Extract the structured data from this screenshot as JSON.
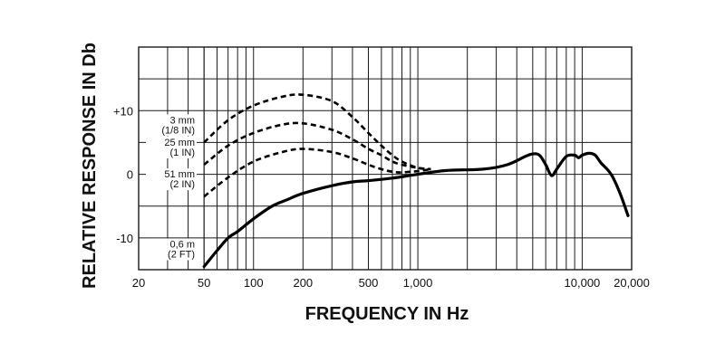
{
  "chart_data": {
    "type": "line",
    "xlabel": "FREQUENCY IN Hz",
    "ylabel": "RELATIVE RESPONSE IN Db",
    "x_scale": "log",
    "xlim": [
      20,
      20000
    ],
    "ylim": [
      -15,
      20
    ],
    "grid": true,
    "x_ticks": [
      {
        "value": 20,
        "label": "20"
      },
      {
        "value": 50,
        "label": "50"
      },
      {
        "value": 100,
        "label": "100"
      },
      {
        "value": 200,
        "label": "200"
      },
      {
        "value": 500,
        "label": "500"
      },
      {
        "value": 1000,
        "label": "1,000"
      },
      {
        "value": 10000,
        "label": "10,000"
      },
      {
        "value": 20000,
        "label": "20,000"
      }
    ],
    "y_ticks": [
      {
        "value": 10,
        "label": "+10"
      },
      {
        "value": 0,
        "label": "0"
      },
      {
        "value": -10,
        "label": "-10"
      }
    ],
    "series": [
      {
        "name": "3 mm (1/8 IN)",
        "label_lines": [
          "3 mm",
          "(1/8 IN)"
        ],
        "style": "dashed",
        "points": [
          [
            50,
            5
          ],
          [
            70,
            8.5
          ],
          [
            100,
            10.8
          ],
          [
            150,
            12.2
          ],
          [
            200,
            12.5
          ],
          [
            300,
            11.5
          ],
          [
            400,
            9
          ],
          [
            500,
            6.5
          ],
          [
            600,
            4.5
          ],
          [
            700,
            3
          ],
          [
            800,
            2
          ],
          [
            1000,
            1
          ],
          [
            1200,
            0.8
          ]
        ]
      },
      {
        "name": "25 mm (1 IN)",
        "label_lines": [
          "25 mm",
          "(1 IN)"
        ],
        "style": "dashed",
        "points": [
          [
            50,
            1.5
          ],
          [
            70,
            4.5
          ],
          [
            100,
            6.5
          ],
          [
            150,
            7.8
          ],
          [
            200,
            8
          ],
          [
            300,
            7
          ],
          [
            400,
            5.5
          ],
          [
            500,
            4
          ],
          [
            600,
            3
          ],
          [
            700,
            2
          ],
          [
            800,
            1.5
          ],
          [
            1000,
            1
          ],
          [
            1200,
            0.8
          ]
        ]
      },
      {
        "name": "51 mm (2 IN)",
        "label_lines": [
          "51 mm",
          "(2 IN)"
        ],
        "style": "dashed",
        "points": [
          [
            50,
            -3.5
          ],
          [
            70,
            -0.5
          ],
          [
            100,
            2
          ],
          [
            150,
            3.5
          ],
          [
            200,
            4
          ],
          [
            300,
            3.5
          ],
          [
            400,
            2.5
          ],
          [
            500,
            1.5
          ],
          [
            600,
            0.8
          ],
          [
            700,
            0.4
          ],
          [
            800,
            0.3
          ],
          [
            1000,
            0.5
          ],
          [
            1200,
            0.8
          ]
        ]
      },
      {
        "name": "0,6 m (2 FT)",
        "label_lines": [
          "0,6 m",
          "(2 FT)"
        ],
        "style": "solid",
        "points": [
          [
            50,
            -14.5
          ],
          [
            60,
            -12
          ],
          [
            70,
            -10
          ],
          [
            80,
            -9
          ],
          [
            100,
            -7
          ],
          [
            130,
            -5
          ],
          [
            160,
            -4
          ],
          [
            200,
            -3
          ],
          [
            300,
            -1.8
          ],
          [
            400,
            -1.2
          ],
          [
            500,
            -1
          ],
          [
            700,
            -0.6
          ],
          [
            1000,
            0
          ],
          [
            1500,
            0.6
          ],
          [
            2500,
            0.8
          ],
          [
            3500,
            1.5
          ],
          [
            4500,
            2.8
          ],
          [
            5000,
            3.2
          ],
          [
            5500,
            3
          ],
          [
            6000,
            1.5
          ],
          [
            6500,
            -0.2
          ],
          [
            7000,
            0.8
          ],
          [
            8000,
            2.8
          ],
          [
            9000,
            3
          ],
          [
            9500,
            2.6
          ],
          [
            10000,
            3
          ],
          [
            11000,
            3.3
          ],
          [
            12000,
            3
          ],
          [
            13000,
            1.8
          ],
          [
            15000,
            0
          ],
          [
            17000,
            -3
          ],
          [
            19000,
            -6.5
          ]
        ]
      }
    ]
  }
}
